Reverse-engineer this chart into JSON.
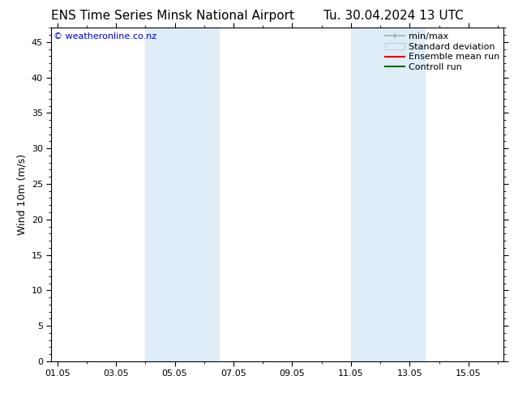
{
  "title_left": "ENS Time Series Minsk National Airport",
  "title_right": "Tu. 30.04.2024 13 UTC",
  "ylabel": "Wind 10m (m/s)",
  "ylim": [
    0,
    47
  ],
  "yticks": [
    0,
    5,
    10,
    15,
    20,
    25,
    30,
    35,
    40,
    45
  ],
  "xtick_labels": [
    "01.05",
    "03.05",
    "05.05",
    "07.05",
    "09.05",
    "11.05",
    "13.05",
    "15.05"
  ],
  "xtick_positions": [
    0,
    2,
    4,
    6,
    8,
    10,
    12,
    14
  ],
  "shade_regions": [
    {
      "xmin": 3.0,
      "xmax": 5.5
    },
    {
      "xmin": 10.0,
      "xmax": 12.5
    }
  ],
  "shade_color": "#deedf8",
  "background_color": "#ffffff",
  "plot_bg_color": "#ffffff",
  "watermark_text": "© weatheronline.co.nz",
  "watermark_color": "#0000cc",
  "watermark_fontsize": 8,
  "title_fontsize": 11,
  "axis_label_fontsize": 9,
  "tick_fontsize": 8,
  "legend_fontsize": 8,
  "border_color": "#000000",
  "tick_color": "#000000",
  "xmin": -0.2,
  "xmax": 15.2
}
